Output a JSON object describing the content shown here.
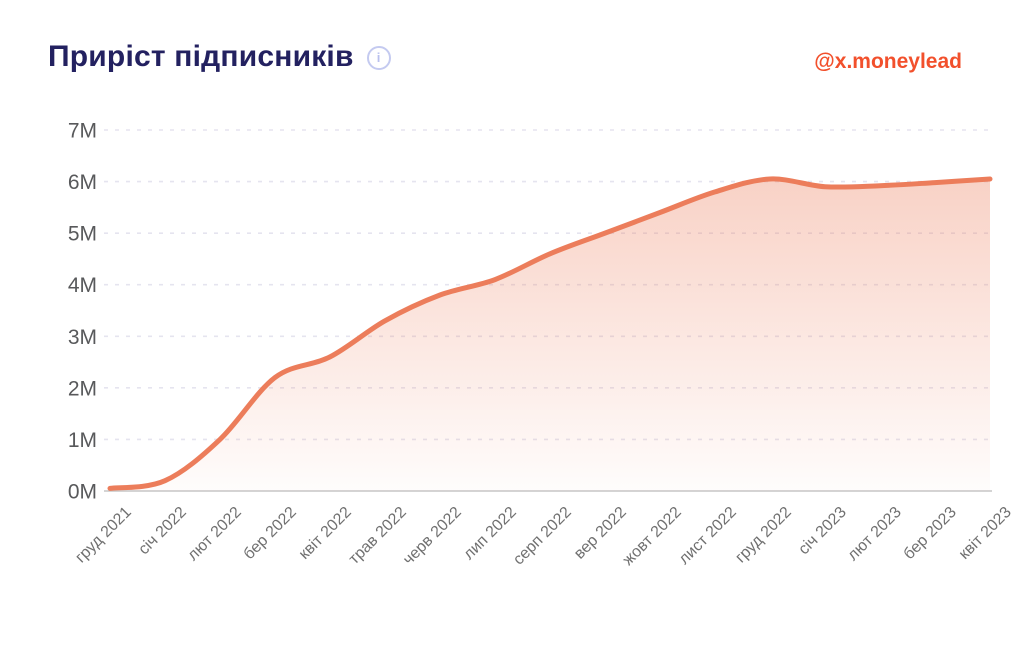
{
  "header": {
    "title": "Приріст підписників",
    "info_icon": "i",
    "handle": "@x.moneylead"
  },
  "colors": {
    "title": "#232160",
    "handle": "#f2502c",
    "line": "#ec7d5b",
    "fill_top": "rgba(236,125,91,0.40)",
    "fill_bottom": "rgba(236,125,91,0.02)",
    "grid": "#e5e4ef",
    "axis_line": "#c6c6c6",
    "y_tick_label": "#58595b",
    "x_tick_label": "#707070",
    "info_icon": "#b9c0ee"
  },
  "chart_data": {
    "type": "area",
    "title": "Приріст підписників",
    "xlabel": "",
    "ylabel": "",
    "unit": "M",
    "categories": [
      "груд 2021",
      "січ 2022",
      "лют 2022",
      "бер 2022",
      "квіт 2022",
      "трав 2022",
      "черв 2022",
      "лип 2022",
      "серп 2022",
      "вер 2022",
      "жовт 2022",
      "лист 2022",
      "груд 2022",
      "січ 2023",
      "лют 2023",
      "бер 2023",
      "квіт 2023"
    ],
    "values": [
      0.05,
      0.2,
      1.0,
      2.2,
      2.6,
      3.3,
      3.8,
      4.1,
      4.6,
      5.0,
      5.4,
      5.8,
      6.05,
      5.9,
      5.92,
      5.98,
      6.05
    ],
    "y_ticks": [
      "0M",
      "1M",
      "2M",
      "3M",
      "4M",
      "5M",
      "6M",
      "7M"
    ],
    "ylim": [
      0,
      7
    ],
    "grid": "horizontal-dashed",
    "legend": "none",
    "x_tick_rotation": -45
  }
}
